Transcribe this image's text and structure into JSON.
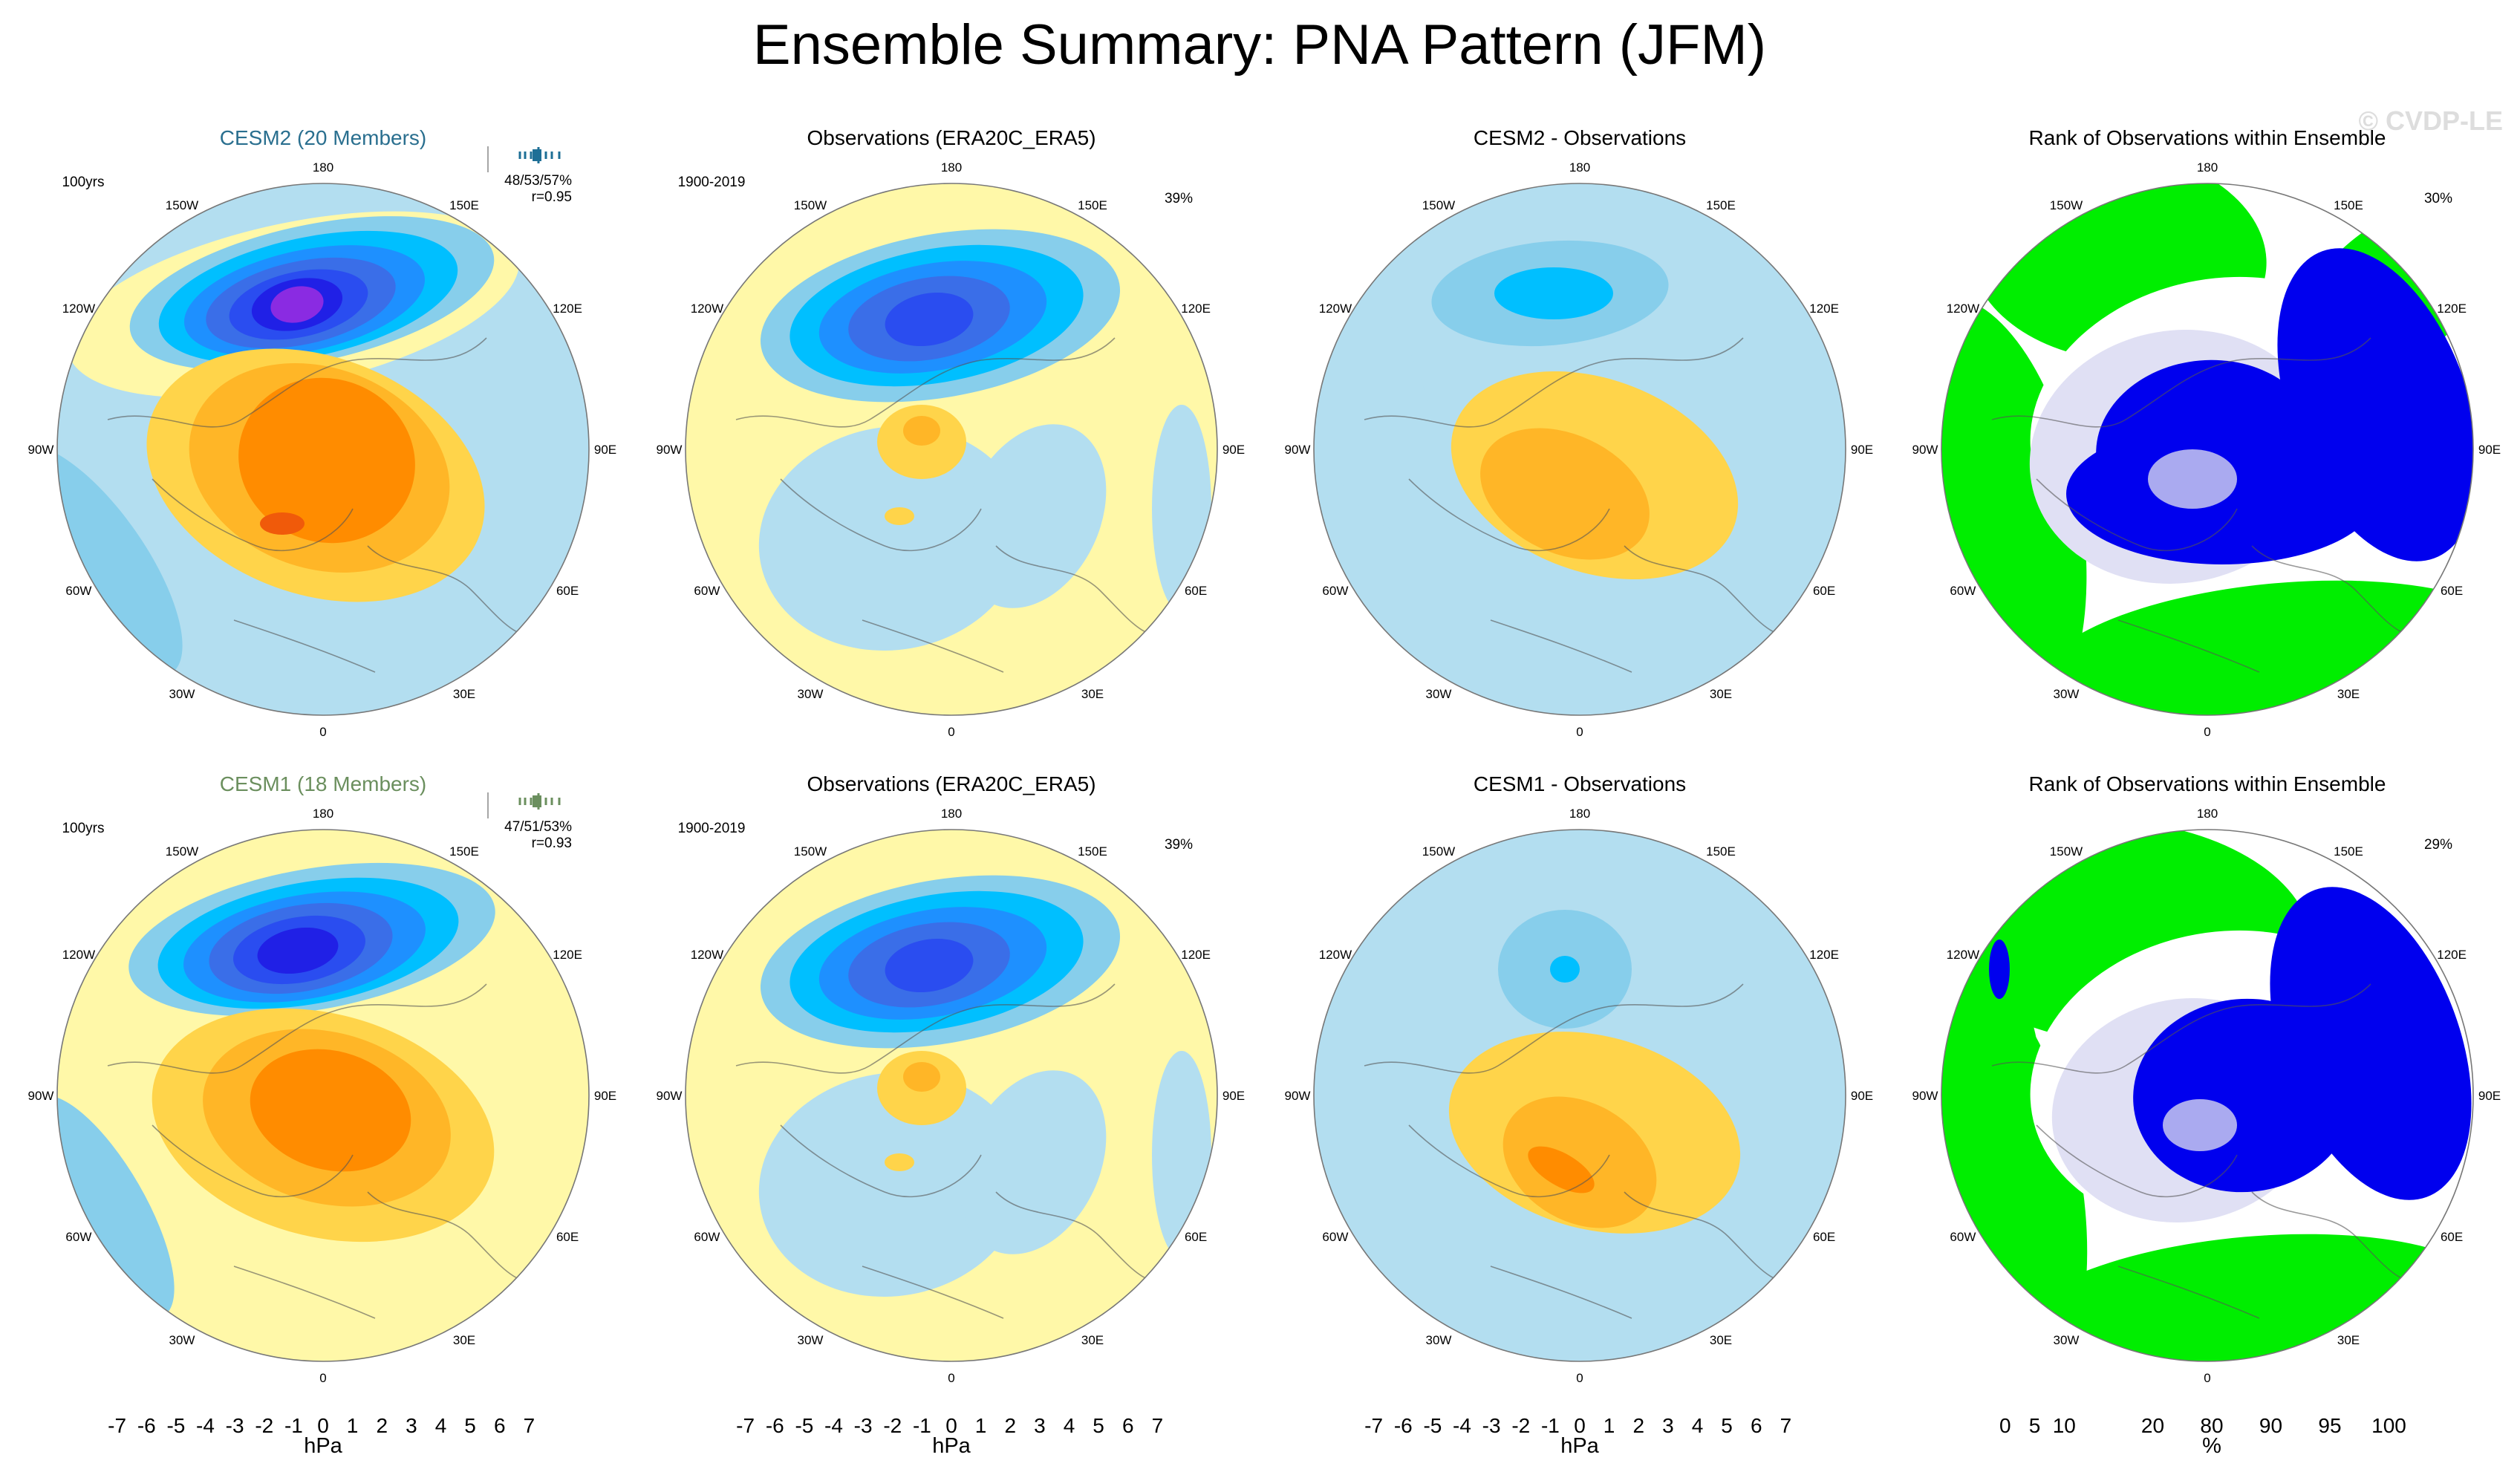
{
  "title": "Ensemble Summary: PNA Pattern (JFM)",
  "watermark": "© CVDP-LE",
  "lon_labels": [
    "180",
    "150E",
    "120E",
    "90E",
    "60E",
    "30E",
    "0",
    "30W",
    "60W",
    "90W",
    "120W",
    "150W"
  ],
  "panels": [
    {
      "title": "CESM2 (20 Members)",
      "title_color": "#2a6f8f",
      "kind": "model",
      "top_left": "100yrs",
      "top_right_1": "48/53/57%",
      "top_right_2": "r=0.95",
      "glyph_color": "#1e6f96"
    },
    {
      "title": "Observations (ERA20C_ERA5)",
      "title_color": "#000000",
      "kind": "obs",
      "top_left": "1900-2019",
      "top_right_1": "39%"
    },
    {
      "title": "CESM2 - Observations",
      "title_color": "#000000",
      "kind": "diff"
    },
    {
      "title": "Rank of Observations within Ensemble",
      "title_color": "#000000",
      "kind": "rank",
      "top_right_1": "30%"
    },
    {
      "title": "CESM1 (18 Members)",
      "title_color": "#6b8f5e",
      "kind": "model",
      "top_left": "100yrs",
      "top_right_1": "47/51/53%",
      "top_right_2": "r=0.93",
      "glyph_color": "#6b8f5e"
    },
    {
      "title": "Observations (ERA20C_ERA5)",
      "title_color": "#000000",
      "kind": "obs",
      "top_left": "1900-2019",
      "top_right_1": "39%"
    },
    {
      "title": "CESM1 - Observations",
      "title_color": "#000000",
      "kind": "diff"
    },
    {
      "title": "Rank of Observations within Ensemble",
      "title_color": "#000000",
      "kind": "rank",
      "top_right_1": "29%"
    }
  ],
  "chart_data": {
    "type": "heatmap",
    "projection": "north polar stereographic",
    "contour_colorbar": {
      "unit": "hPa",
      "tick_labels": [
        "-7",
        "-6",
        "-5",
        "-4",
        "-3",
        "-2",
        "-1",
        "0",
        "1",
        "2",
        "3",
        "4",
        "5",
        "6",
        "7"
      ],
      "colors": [
        "#8a2be2",
        "#2020e6",
        "#2a4df0",
        "#3a6ee8",
        "#1e90ff",
        "#00bfff",
        "#87ceeb",
        "#b3def0",
        "#fff8a8",
        "#ffd44a",
        "#ffb627",
        "#ff8c00",
        "#f05a0a",
        "#e82018",
        "#c41a1a",
        "#f4a0a0"
      ]
    },
    "rank_colorbar": {
      "unit": "%",
      "tick_labels": [
        "0",
        "5",
        "10",
        "20",
        "80",
        "90",
        "95",
        "100"
      ],
      "colors": [
        "#0000ee",
        "#6666f0",
        "#aaaaf0",
        "#e0e0f4",
        "#ffffff",
        "#e0f8e0",
        "#a0f0a0",
        "#00ee00"
      ]
    },
    "panel_values": {
      "CESM2 PNA": {
        "north_pacific_low_min": -7,
        "north_america_high_max": 5,
        "pattern_correlation": 0.95
      },
      "CESM1 PNA": {
        "north_pacific_low_min": -6,
        "north_america_high_max": 4,
        "pattern_correlation": 0.93
      },
      "Observations PNA": {
        "north_pacific_low_min": -5,
        "north_america_high_max": 3,
        "variance_explained_pct": 39
      },
      "CESM2 - Observations": {
        "north_pacific_min": -2,
        "north_america_max": 3
      },
      "CESM1 - Observations": {
        "north_pacific_min": -2,
        "north_america_max": 3
      },
      "CESM2 rank": {
        "value_pct": 30
      },
      "CESM1 rank": {
        "value_pct": 29
      }
    }
  }
}
